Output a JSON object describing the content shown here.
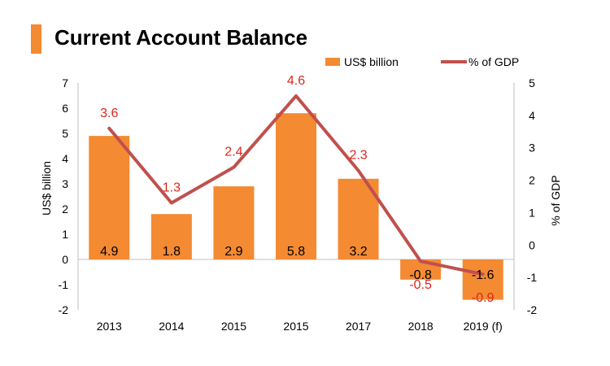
{
  "title": "Current Account Balance",
  "colors": {
    "accent": "#F48A32",
    "bar": "#F48A32",
    "line": "#C0504D",
    "line_label": "#E2231A",
    "axis": "#BFBFBF"
  },
  "chart_data": {
    "type": "bar",
    "categories": [
      "2013",
      "2014",
      "2015",
      "2015",
      "2017",
      "2018",
      "2019 (f)"
    ],
    "series": [
      {
        "name": "US$ billion",
        "type": "bar",
        "axis": "left",
        "values": [
          4.9,
          1.8,
          2.9,
          5.8,
          3.2,
          -0.8,
          -1.6
        ]
      },
      {
        "name": "% of GDP",
        "type": "line",
        "axis": "right",
        "values": [
          3.6,
          1.3,
          2.4,
          4.6,
          2.3,
          -0.5,
          -0.9
        ]
      }
    ],
    "ylabel": "US$  billion",
    "y2label": "% of GDP",
    "ylim": [
      -2,
      7
    ],
    "y2lim": [
      -2,
      5
    ],
    "yticks": [
      "-2",
      "-1",
      "0",
      "1",
      "2",
      "3",
      "4",
      "5",
      "6",
      "7"
    ],
    "y2ticks": [
      "-2",
      "-1",
      "0",
      "1",
      "2",
      "3",
      "4",
      "5"
    ],
    "legend_position": "top-right",
    "grid": false
  }
}
